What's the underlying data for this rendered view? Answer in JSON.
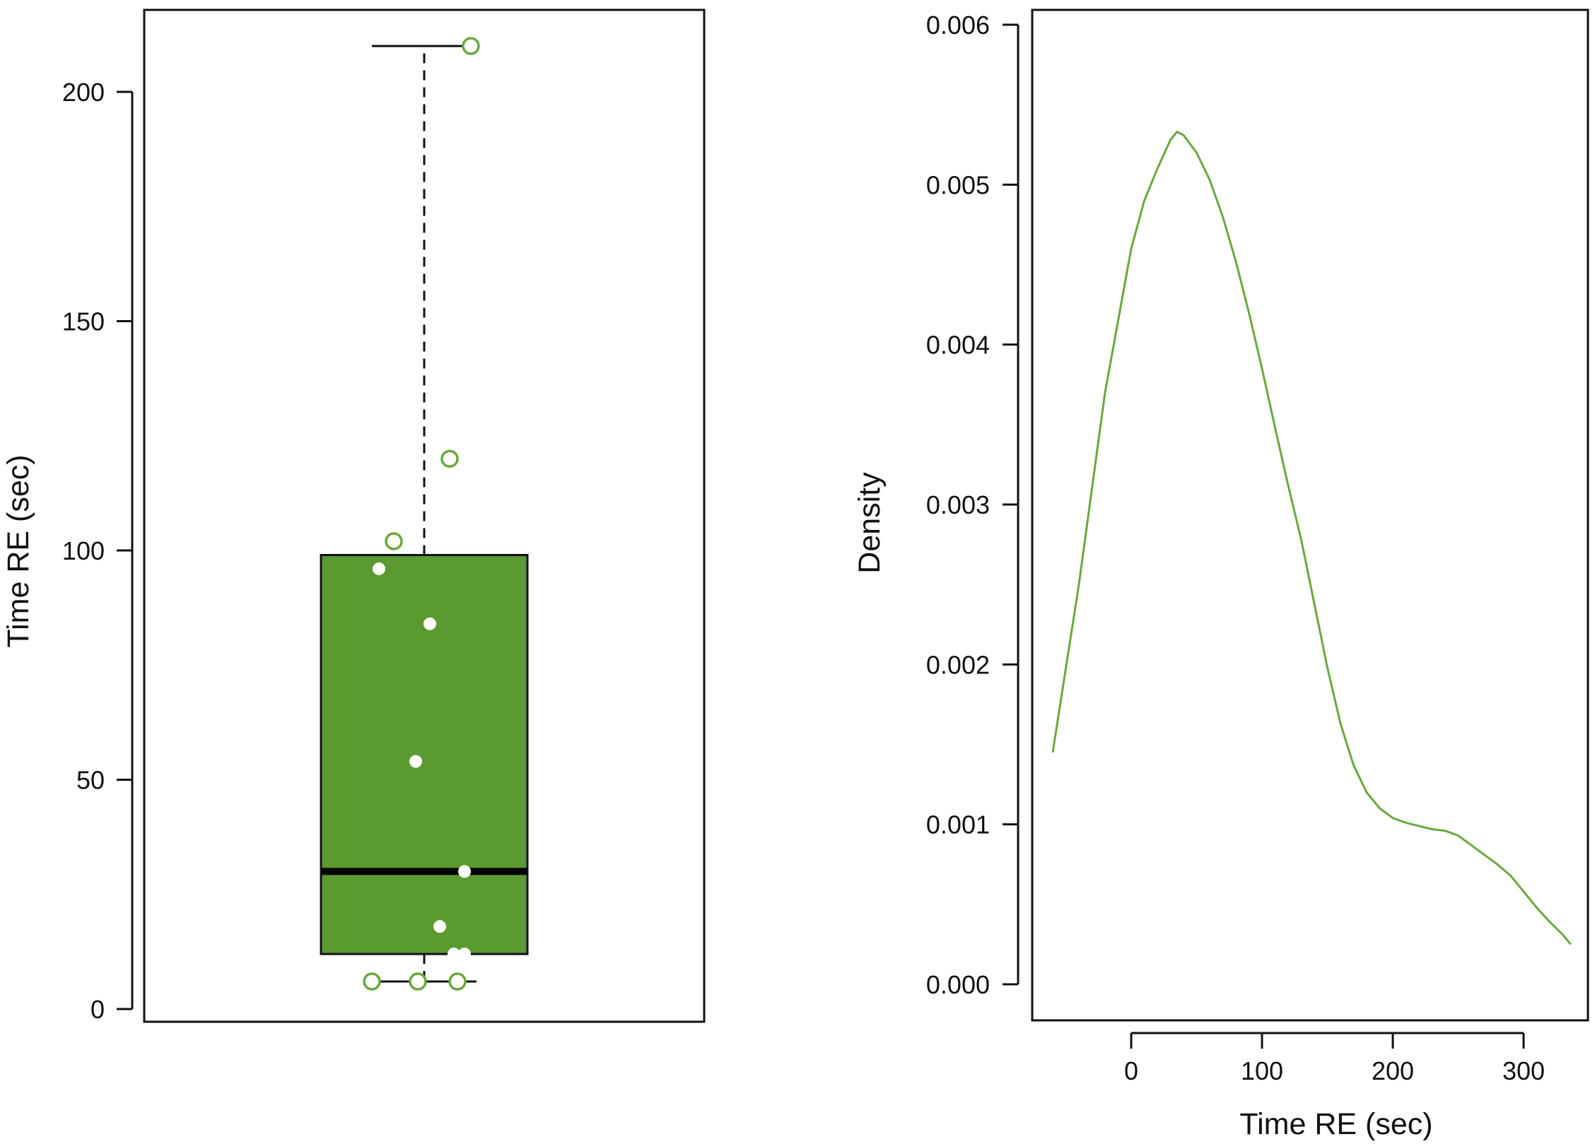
{
  "colors": {
    "box_fill": "#5a9a30",
    "line": "#6aa83e",
    "point_outline": "#6aa83e",
    "point_inner": "#ffffff",
    "axis": "#111111",
    "median": "#000000"
  },
  "chart_data": [
    {
      "type": "box",
      "title": "",
      "xlabel": "",
      "ylabel": "Time RE (sec)",
      "ylim": [
        0,
        210
      ],
      "yticks": [
        0,
        50,
        100,
        150,
        200
      ],
      "ytick_labels": [
        "0",
        "50",
        "100",
        "150",
        "200"
      ],
      "grid": false,
      "box": {
        "q1": 12,
        "median": 30,
        "q3": 99,
        "whisker_low": 6,
        "whisker_high": 210
      },
      "points_outside_box": [
        210,
        120,
        102,
        6,
        6,
        6
      ],
      "points_inside_box": [
        96,
        84,
        54,
        30,
        18,
        12,
        12
      ]
    },
    {
      "type": "line",
      "title": "",
      "xlabel": "Time RE (sec)",
      "ylabel": "Density",
      "xlim": [
        -60,
        340
      ],
      "ylim": [
        0,
        0.006
      ],
      "xticks": [
        0,
        100,
        200,
        300
      ],
      "xtick_labels": [
        "0",
        "100",
        "200",
        "300"
      ],
      "yticks": [
        0,
        0.001,
        0.002,
        0.003,
        0.004,
        0.005,
        0.006
      ],
      "ytick_labels": [
        "0.000",
        "0.001",
        "0.002",
        "0.003",
        "0.004",
        "0.005",
        "0.006"
      ],
      "grid": false,
      "series": [
        {
          "x": [
            -60,
            -40,
            -20,
            0,
            10,
            20,
            30,
            35,
            40,
            50,
            60,
            70,
            80,
            90,
            100,
            110,
            120,
            130,
            140,
            150,
            160,
            170,
            180,
            190,
            200,
            210,
            220,
            230,
            240,
            250,
            260,
            270,
            280,
            290,
            300,
            310,
            320,
            330,
            336
          ],
          "y": [
            0.00145,
            0.0025,
            0.0037,
            0.0046,
            0.0049,
            0.0051,
            0.00528,
            0.00533,
            0.00531,
            0.0052,
            0.00503,
            0.0048,
            0.00452,
            0.0042,
            0.00385,
            0.00348,
            0.00312,
            0.00278,
            0.00238,
            0.00198,
            0.00163,
            0.00137,
            0.0012,
            0.0011,
            0.00104,
            0.00101,
            0.00099,
            0.00097,
            0.00096,
            0.00093,
            0.00087,
            0.00081,
            0.00075,
            0.00068,
            0.00058,
            0.00048,
            0.00039,
            0.00031,
            0.00025
          ]
        }
      ]
    }
  ]
}
